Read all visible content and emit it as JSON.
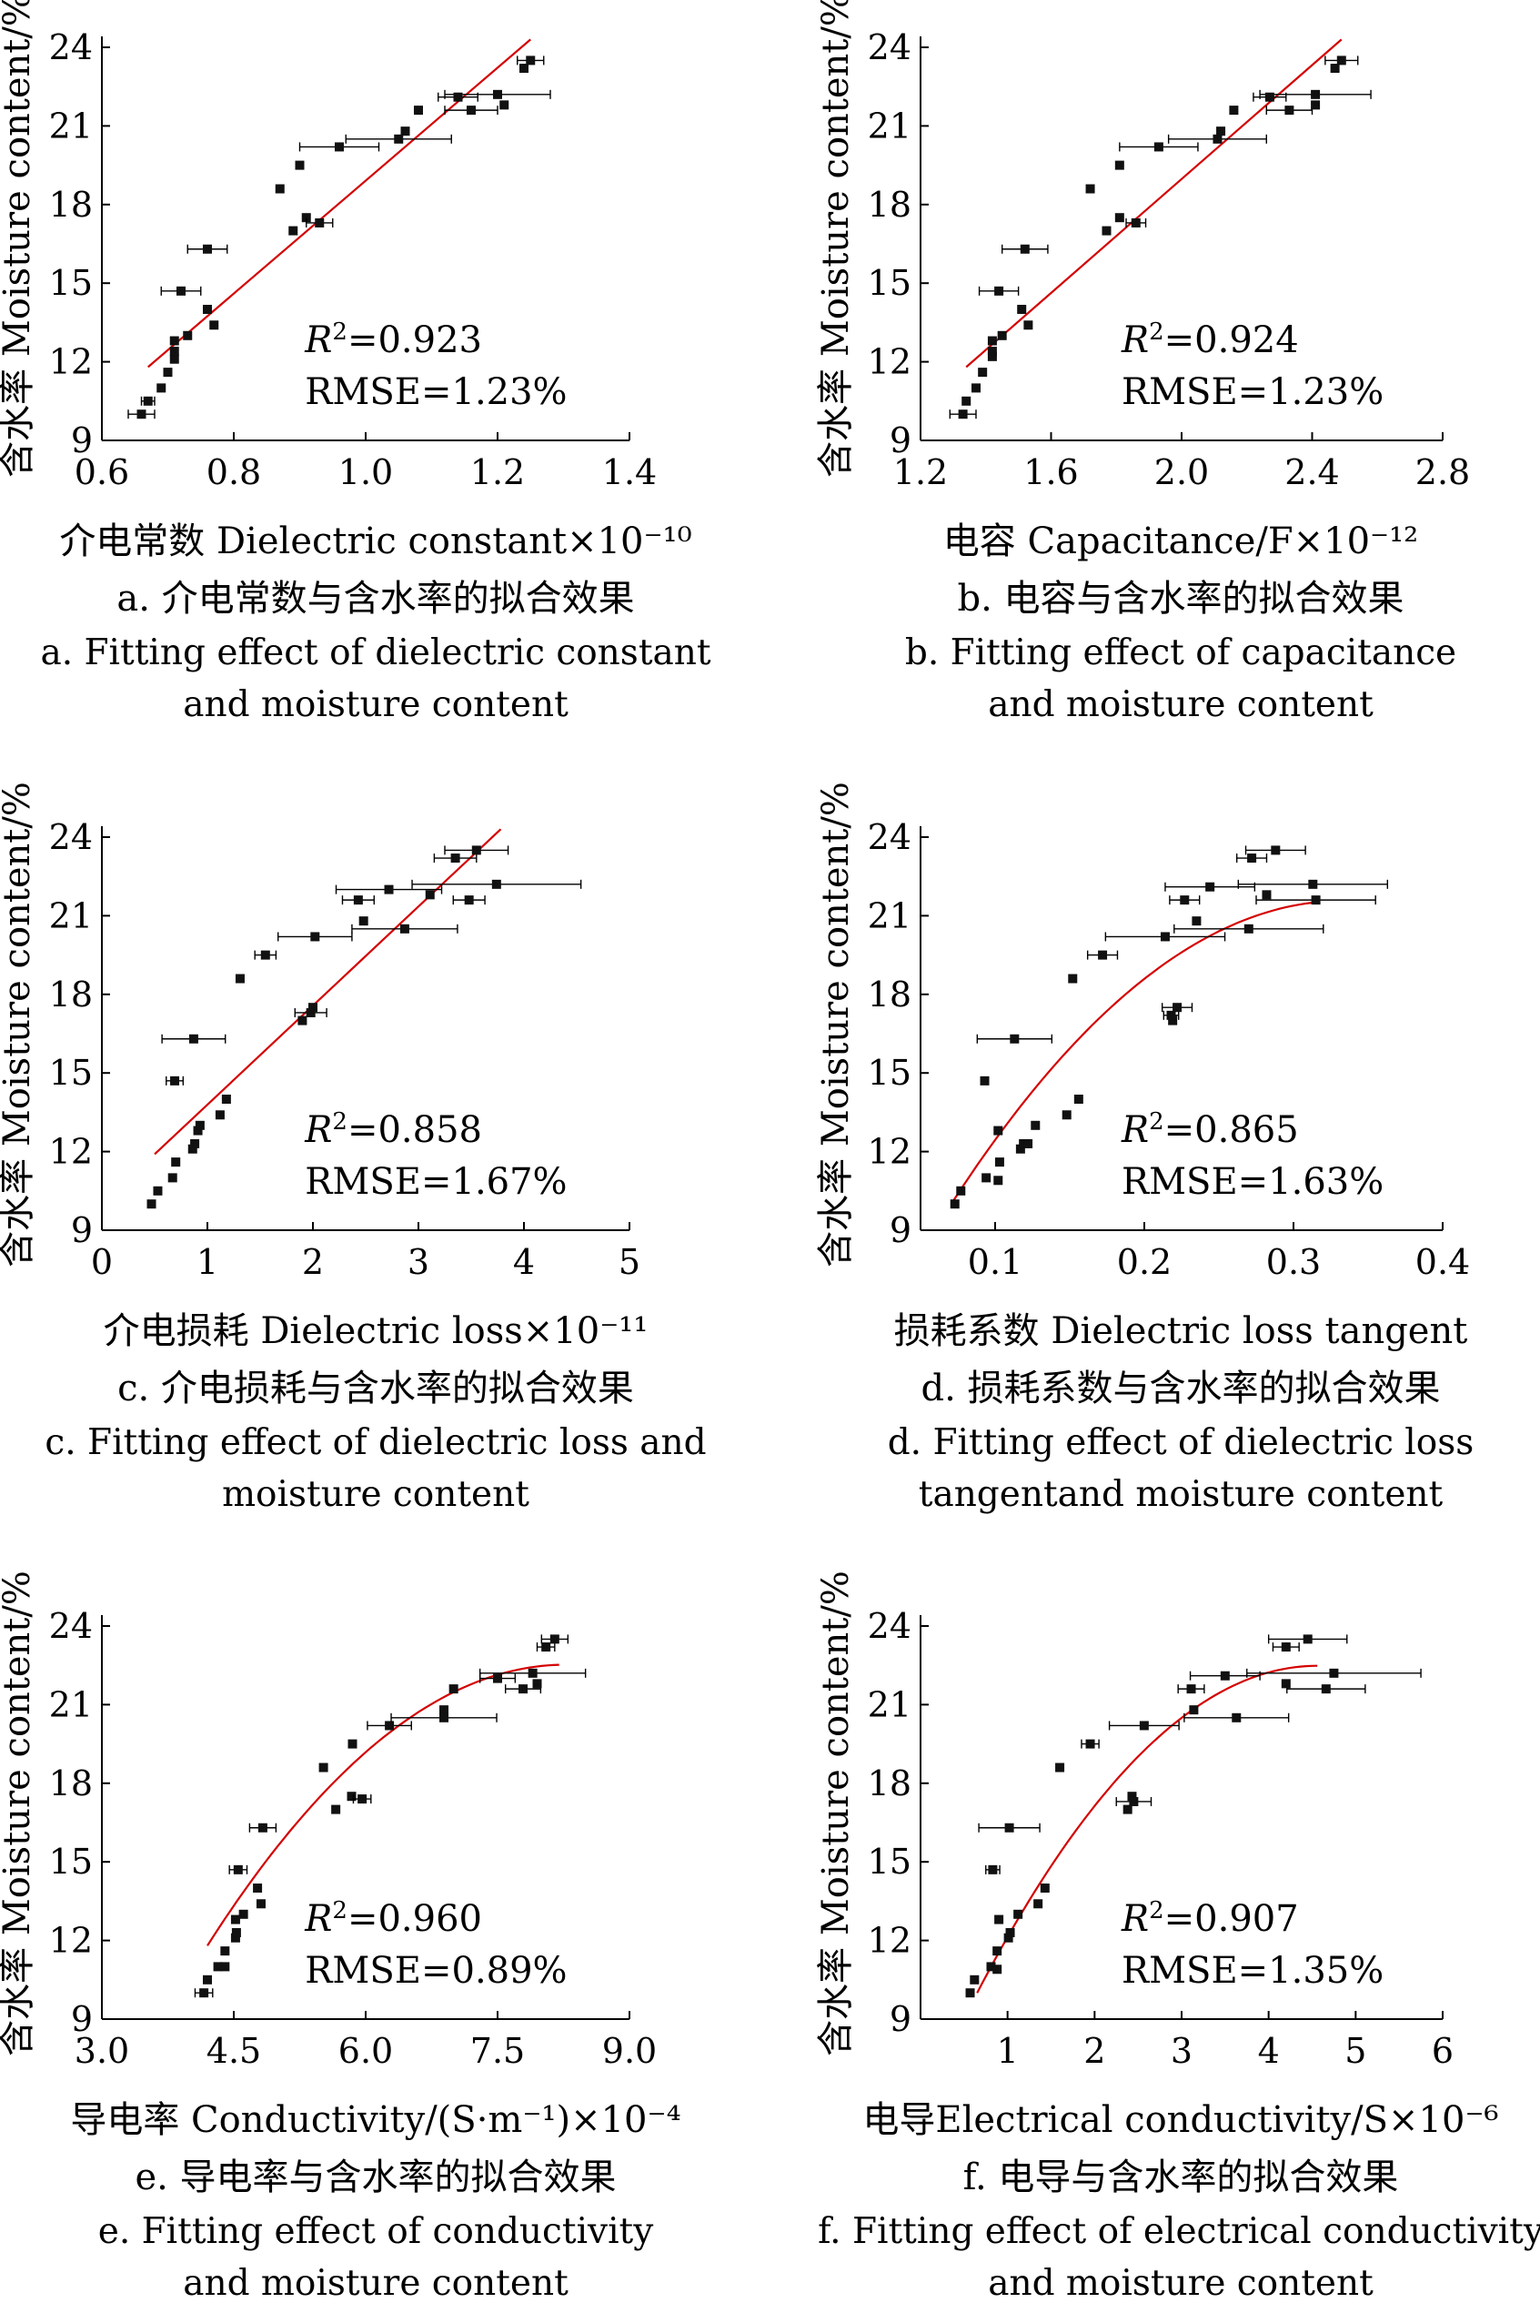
{
  "chart_data": [
    {
      "id": "a",
      "type": "scatter",
      "ylabel": "含水率 Moisture content/%",
      "xlabel": "介电常数 Dielectric constant×10⁻¹⁰",
      "xlim": [
        0.6,
        1.4
      ],
      "ylim": [
        9,
        24
      ],
      "xticks": [
        "0.6",
        "0.8",
        "1.0",
        "1.2",
        "1.4"
      ],
      "yticks": [
        "9",
        "12",
        "15",
        "18",
        "21",
        "24"
      ],
      "r2": "=0.923",
      "rmse": "RMSE=1.23%",
      "caption_cn": "a. 介电常数与含水率的拟合效果",
      "caption_en_1": "a. Fitting effect of dielectric constant",
      "caption_en_2": "and moisture content",
      "fit": {
        "type": "linear",
        "x": [
          0.67,
          1.25
        ],
        "y": [
          11.8,
          24.3
        ]
      },
      "points": [
        {
          "x": 0.66,
          "y": 10.0,
          "err": 0.02
        },
        {
          "x": 0.67,
          "y": 10.5,
          "err": 0.01
        },
        {
          "x": 0.69,
          "y": 11.0
        },
        {
          "x": 0.7,
          "y": 11.6
        },
        {
          "x": 0.71,
          "y": 12.1
        },
        {
          "x": 0.71,
          "y": 12.4
        },
        {
          "x": 0.71,
          "y": 12.8
        },
        {
          "x": 0.73,
          "y": 13.0
        },
        {
          "x": 0.77,
          "y": 13.4
        },
        {
          "x": 0.76,
          "y": 14.0
        },
        {
          "x": 0.72,
          "y": 14.7,
          "err": 0.03
        },
        {
          "x": 0.76,
          "y": 16.3,
          "err": 0.03
        },
        {
          "x": 0.89,
          "y": 17.0
        },
        {
          "x": 0.91,
          "y": 17.5
        },
        {
          "x": 0.93,
          "y": 17.3,
          "err": 0.02
        },
        {
          "x": 0.87,
          "y": 18.6
        },
        {
          "x": 0.9,
          "y": 19.5
        },
        {
          "x": 0.96,
          "y": 20.2,
          "err": 0.06
        },
        {
          "x": 1.05,
          "y": 20.5,
          "err": 0.08
        },
        {
          "x": 1.06,
          "y": 20.8
        },
        {
          "x": 1.08,
          "y": 21.6
        },
        {
          "x": 1.16,
          "y": 21.6,
          "err": 0.04
        },
        {
          "x": 1.21,
          "y": 21.8
        },
        {
          "x": 1.2,
          "y": 22.2,
          "err": 0.08
        },
        {
          "x": 1.14,
          "y": 22.1,
          "err": 0.03
        },
        {
          "x": 1.24,
          "y": 23.2
        },
        {
          "x": 1.25,
          "y": 23.5,
          "err": 0.02
        }
      ]
    },
    {
      "id": "b",
      "type": "scatter",
      "ylabel": "含水率 Moisture content/%",
      "xlabel": "电容 Capacitance/F×10⁻¹²",
      "xlim": [
        1.2,
        2.8
      ],
      "ylim": [
        9,
        24
      ],
      "xticks": [
        "1.2",
        "1.6",
        "2.0",
        "2.4",
        "2.8"
      ],
      "yticks": [
        "9",
        "12",
        "15",
        "18",
        "21",
        "24"
      ],
      "r2": "=0.924",
      "rmse": "RMSE=1.23%",
      "caption_cn": "b. 电容与含水率的拟合效果",
      "caption_en_1": "b. Fitting effect of capacitance",
      "caption_en_2": "and moisture content",
      "fit": {
        "type": "linear",
        "x": [
          1.34,
          2.49
        ],
        "y": [
          11.8,
          24.3
        ]
      },
      "points": [
        {
          "x": 1.33,
          "y": 10.0,
          "err": 0.04
        },
        {
          "x": 1.34,
          "y": 10.5
        },
        {
          "x": 1.37,
          "y": 11.0
        },
        {
          "x": 1.39,
          "y": 11.6
        },
        {
          "x": 1.42,
          "y": 12.2
        },
        {
          "x": 1.42,
          "y": 12.4
        },
        {
          "x": 1.42,
          "y": 12.8
        },
        {
          "x": 1.45,
          "y": 13.0
        },
        {
          "x": 1.53,
          "y": 13.4
        },
        {
          "x": 1.51,
          "y": 14.0
        },
        {
          "x": 1.44,
          "y": 14.7,
          "err": 0.06
        },
        {
          "x": 1.52,
          "y": 16.3,
          "err": 0.07
        },
        {
          "x": 1.77,
          "y": 17.0
        },
        {
          "x": 1.81,
          "y": 17.5
        },
        {
          "x": 1.86,
          "y": 17.3,
          "err": 0.03
        },
        {
          "x": 1.72,
          "y": 18.6
        },
        {
          "x": 1.81,
          "y": 19.5
        },
        {
          "x": 1.93,
          "y": 20.2,
          "err": 0.12
        },
        {
          "x": 2.11,
          "y": 20.5,
          "err": 0.15
        },
        {
          "x": 2.12,
          "y": 20.8
        },
        {
          "x": 2.16,
          "y": 21.6
        },
        {
          "x": 2.33,
          "y": 21.6,
          "err": 0.07
        },
        {
          "x": 2.41,
          "y": 21.8
        },
        {
          "x": 2.41,
          "y": 22.2,
          "err": 0.17
        },
        {
          "x": 2.27,
          "y": 22.1,
          "err": 0.05
        },
        {
          "x": 2.47,
          "y": 23.2
        },
        {
          "x": 2.49,
          "y": 23.5,
          "err": 0.05
        }
      ]
    },
    {
      "id": "c",
      "type": "scatter",
      "ylabel": "含水率 Moisture content/%",
      "xlabel": "介电损耗 Dielectric loss×10⁻¹¹",
      "xlim": [
        0,
        5
      ],
      "ylim": [
        9,
        24
      ],
      "xticks": [
        "0",
        "1",
        "2",
        "3",
        "4",
        "5"
      ],
      "yticks": [
        "9",
        "12",
        "15",
        "18",
        "21",
        "24"
      ],
      "r2": "=0.858",
      "rmse": "RMSE=1.67%",
      "caption_cn": "c. 介电损耗与含水率的拟合效果",
      "caption_en_1": "c. Fitting effect of dielectric loss and",
      "caption_en_2": "moisture content",
      "fit": {
        "type": "linear",
        "x": [
          0.5,
          3.78
        ],
        "y": [
          11.9,
          24.3
        ]
      },
      "points": [
        {
          "x": 0.47,
          "y": 10.0
        },
        {
          "x": 0.53,
          "y": 10.5
        },
        {
          "x": 0.67,
          "y": 11.0
        },
        {
          "x": 0.7,
          "y": 11.6
        },
        {
          "x": 0.86,
          "y": 12.1
        },
        {
          "x": 0.88,
          "y": 12.3
        },
        {
          "x": 0.91,
          "y": 12.8
        },
        {
          "x": 0.93,
          "y": 13.0
        },
        {
          "x": 1.12,
          "y": 13.4
        },
        {
          "x": 1.18,
          "y": 14.0
        },
        {
          "x": 0.69,
          "y": 14.7,
          "err": 0.08
        },
        {
          "x": 0.87,
          "y": 16.3,
          "err": 0.3
        },
        {
          "x": 1.9,
          "y": 17.0
        },
        {
          "x": 1.98,
          "y": 17.3,
          "err": 0.15
        },
        {
          "x": 2.0,
          "y": 17.5
        },
        {
          "x": 1.31,
          "y": 18.6
        },
        {
          "x": 1.55,
          "y": 19.5,
          "err": 0.1
        },
        {
          "x": 2.02,
          "y": 20.2,
          "err": 0.35
        },
        {
          "x": 2.87,
          "y": 20.5,
          "err": 0.5
        },
        {
          "x": 2.48,
          "y": 20.8
        },
        {
          "x": 2.43,
          "y": 21.6,
          "err": 0.15
        },
        {
          "x": 3.48,
          "y": 21.6,
          "err": 0.15
        },
        {
          "x": 3.11,
          "y": 21.8
        },
        {
          "x": 3.74,
          "y": 22.2,
          "err": 0.8
        },
        {
          "x": 2.72,
          "y": 22.0,
          "err": 0.5
        },
        {
          "x": 3.35,
          "y": 23.2,
          "err": 0.2
        },
        {
          "x": 3.55,
          "y": 23.5,
          "err": 0.3
        }
      ]
    },
    {
      "id": "d",
      "type": "scatter",
      "ylabel": "含水率 Moisture content/%",
      "xlabel": "损耗系数 Dielectric loss tangent",
      "xlim": [
        0.05,
        0.4
      ],
      "ylim": [
        9,
        24
      ],
      "xticks": [
        "0.1",
        "0.2",
        "0.3",
        "0.4"
      ],
      "yticks": [
        "9",
        "12",
        "15",
        "18",
        "21",
        "24"
      ],
      "r2": "=0.865",
      "rmse": "RMSE=1.63%",
      "caption_cn": "d. 损耗系数与含水率的拟合效果",
      "caption_en_1": "d. Fitting effect of dielectric loss",
      "caption_en_2": "tangentand moisture content",
      "fit": {
        "type": "quadratic",
        "a": -167.5,
        "b": 111.7,
        "c": 2.95,
        "x": [
          0.072,
          0.315
        ]
      },
      "points": [
        {
          "x": 0.073,
          "y": 10.0
        },
        {
          "x": 0.077,
          "y": 10.5
        },
        {
          "x": 0.094,
          "y": 11.0
        },
        {
          "x": 0.102,
          "y": 10.9
        },
        {
          "x": 0.103,
          "y": 11.6
        },
        {
          "x": 0.117,
          "y": 12.1
        },
        {
          "x": 0.119,
          "y": 12.3
        },
        {
          "x": 0.122,
          "y": 12.3
        },
        {
          "x": 0.102,
          "y": 12.8
        },
        {
          "x": 0.127,
          "y": 13.0
        },
        {
          "x": 0.148,
          "y": 13.4
        },
        {
          "x": 0.156,
          "y": 14.0
        },
        {
          "x": 0.093,
          "y": 14.7
        },
        {
          "x": 0.113,
          "y": 16.3,
          "err": 0.025
        },
        {
          "x": 0.219,
          "y": 17.0
        },
        {
          "x": 0.218,
          "y": 17.2,
          "err": 0.005
        },
        {
          "x": 0.222,
          "y": 17.5,
          "err": 0.01
        },
        {
          "x": 0.152,
          "y": 18.6
        },
        {
          "x": 0.172,
          "y": 19.5,
          "err": 0.01
        },
        {
          "x": 0.214,
          "y": 20.2,
          "err": 0.04
        },
        {
          "x": 0.27,
          "y": 20.5,
          "err": 0.05
        },
        {
          "x": 0.235,
          "y": 20.8
        },
        {
          "x": 0.227,
          "y": 21.6,
          "err": 0.01
        },
        {
          "x": 0.315,
          "y": 21.6,
          "err": 0.04
        },
        {
          "x": 0.282,
          "y": 21.8
        },
        {
          "x": 0.313,
          "y": 22.2,
          "err": 0.05
        },
        {
          "x": 0.244,
          "y": 22.1,
          "err": 0.03
        },
        {
          "x": 0.272,
          "y": 23.2,
          "err": 0.01
        },
        {
          "x": 0.288,
          "y": 23.5,
          "err": 0.02
        }
      ]
    },
    {
      "id": "e",
      "type": "scatter",
      "ylabel": "含水率 Moisture content/%",
      "xlabel": "导电率 Conductivity/(S·m⁻¹)×10⁻⁴",
      "xlim": [
        3.0,
        9.0
      ],
      "ylim": [
        9,
        24
      ],
      "xticks": [
        "3.0",
        "4.5",
        "6.0",
        "7.5",
        "9.0"
      ],
      "yticks": [
        "9",
        "12",
        "15",
        "18",
        "21",
        "24"
      ],
      "r2": "=0.960",
      "rmse": "RMSE=0.89%",
      "caption_cn": "e. 导电率与含水率的拟合效果",
      "caption_en_1": "e. Fitting effect of conductivity",
      "caption_en_2": "and moisture content",
      "fit": {
        "type": "quadratic",
        "a": -0.646,
        "b": 10.69,
        "c": -21.7,
        "x": [
          4.2,
          8.2
        ]
      },
      "points": [
        {
          "x": 4.16,
          "y": 10.0,
          "err": 0.1
        },
        {
          "x": 4.2,
          "y": 10.5
        },
        {
          "x": 4.32,
          "y": 11.0
        },
        {
          "x": 4.4,
          "y": 11.0
        },
        {
          "x": 4.4,
          "y": 11.6
        },
        {
          "x": 4.52,
          "y": 12.1
        },
        {
          "x": 4.53,
          "y": 12.3
        },
        {
          "x": 4.52,
          "y": 12.8
        },
        {
          "x": 4.61,
          "y": 13.0
        },
        {
          "x": 4.81,
          "y": 13.4
        },
        {
          "x": 4.77,
          "y": 14.0
        },
        {
          "x": 4.55,
          "y": 14.7,
          "err": 0.1
        },
        {
          "x": 4.83,
          "y": 16.3,
          "err": 0.15
        },
        {
          "x": 5.66,
          "y": 17.0
        },
        {
          "x": 5.84,
          "y": 17.5
        },
        {
          "x": 5.96,
          "y": 17.4,
          "err": 0.1
        },
        {
          "x": 5.52,
          "y": 18.6
        },
        {
          "x": 5.85,
          "y": 19.5
        },
        {
          "x": 6.27,
          "y": 20.2,
          "err": 0.25
        },
        {
          "x": 6.89,
          "y": 20.5,
          "err": 0.6
        },
        {
          "x": 6.89,
          "y": 20.8
        },
        {
          "x": 7.0,
          "y": 21.6
        },
        {
          "x": 7.79,
          "y": 21.6,
          "err": 0.2
        },
        {
          "x": 7.95,
          "y": 21.8
        },
        {
          "x": 7.9,
          "y": 22.2,
          "err": 0.6
        },
        {
          "x": 7.5,
          "y": 22.0,
          "err": 0.2
        },
        {
          "x": 8.05,
          "y": 23.2,
          "err": 0.1
        },
        {
          "x": 8.15,
          "y": 23.5,
          "err": 0.15
        }
      ]
    },
    {
      "id": "f",
      "type": "scatter",
      "ylabel": "含水率 Moisture content/%",
      "xlabel": "电导Electrical conductivity/S×10⁻⁶",
      "xlim": [
        0,
        6
      ],
      "ylim": [
        9,
        24
      ],
      "xticks": [
        "1",
        "2",
        "3",
        "4",
        "5",
        "6"
      ],
      "yticks": [
        "9",
        "12",
        "15",
        "18",
        "21",
        "24"
      ],
      "r2": "=0.907",
      "rmse": "RMSE=1.35%",
      "caption_cn": "f. 电导与含水率的拟合效果",
      "caption_en_1": "f. Fitting effect of electrical conductivity",
      "caption_en_2": "and moisture content",
      "fit": {
        "type": "quadratic",
        "a": -0.817,
        "b": 7.45,
        "c": 5.5,
        "x": [
          0.65,
          4.56
        ]
      },
      "points": [
        {
          "x": 0.57,
          "y": 10.0
        },
        {
          "x": 0.62,
          "y": 10.5
        },
        {
          "x": 0.81,
          "y": 11.0
        },
        {
          "x": 0.88,
          "y": 10.9
        },
        {
          "x": 0.88,
          "y": 11.6
        },
        {
          "x": 1.01,
          "y": 12.1
        },
        {
          "x": 1.03,
          "y": 12.3
        },
        {
          "x": 0.9,
          "y": 12.8
        },
        {
          "x": 1.12,
          "y": 13.0
        },
        {
          "x": 1.35,
          "y": 13.4
        },
        {
          "x": 1.43,
          "y": 14.0
        },
        {
          "x": 0.83,
          "y": 14.7,
          "err": 0.08
        },
        {
          "x": 1.02,
          "y": 16.3,
          "err": 0.35
        },
        {
          "x": 2.38,
          "y": 17.0
        },
        {
          "x": 2.43,
          "y": 17.5
        },
        {
          "x": 2.45,
          "y": 17.3,
          "err": 0.2
        },
        {
          "x": 1.6,
          "y": 18.6
        },
        {
          "x": 1.95,
          "y": 19.5,
          "err": 0.1
        },
        {
          "x": 2.57,
          "y": 20.2,
          "err": 0.4
        },
        {
          "x": 3.63,
          "y": 20.5,
          "err": 0.6
        },
        {
          "x": 3.14,
          "y": 20.8
        },
        {
          "x": 3.11,
          "y": 21.6,
          "err": 0.15
        },
        {
          "x": 4.66,
          "y": 21.6,
          "err": 0.45
        },
        {
          "x": 4.2,
          "y": 21.8
        },
        {
          "x": 4.75,
          "y": 22.2,
          "err": 1.0
        },
        {
          "x": 3.5,
          "y": 22.1,
          "err": 0.4
        },
        {
          "x": 4.2,
          "y": 23.2,
          "err": 0.15
        },
        {
          "x": 4.45,
          "y": 23.5,
          "err": 0.45
        }
      ]
    }
  ]
}
